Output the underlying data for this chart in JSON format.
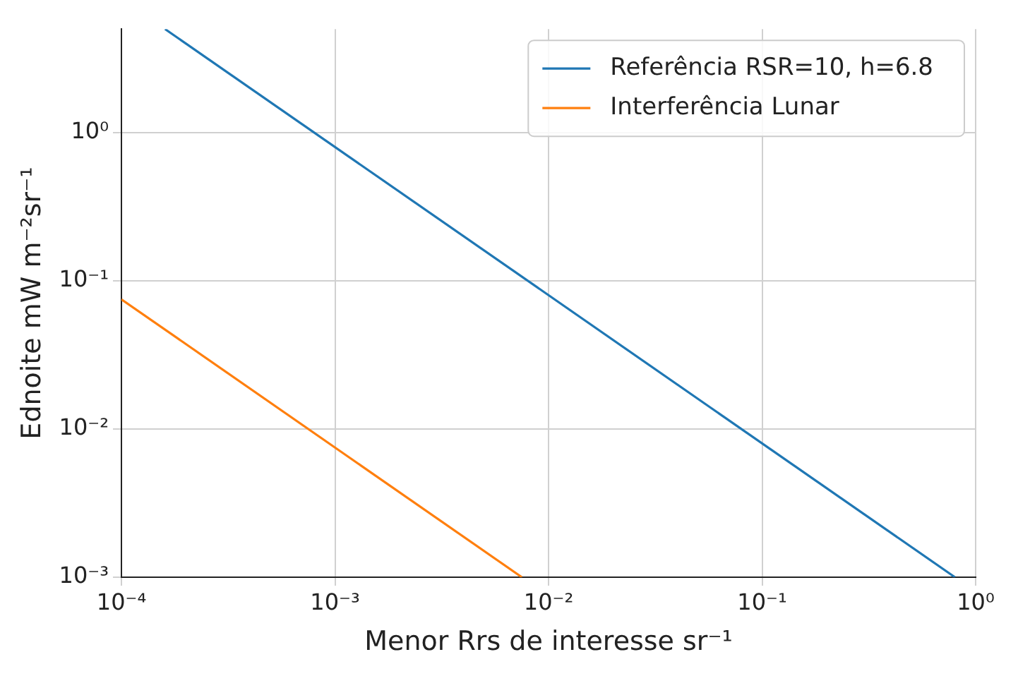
{
  "chart_data": {
    "type": "line",
    "xlabel": "Menor Rrs de interesse sr⁻¹",
    "ylabel": "Ednoite mW m⁻²sr⁻¹",
    "log": "xy",
    "grid": true,
    "legend": "top right",
    "xlim": [
      0.0001,
      1
    ],
    "ylim": [
      0.001,
      5
    ],
    "xticks": [
      {
        "value": 0.0001,
        "label": "10⁻⁴"
      },
      {
        "value": 0.001,
        "label": "10⁻³"
      },
      {
        "value": 0.01,
        "label": "10⁻²"
      },
      {
        "value": 0.1,
        "label": "10⁻¹"
      },
      {
        "value": 1,
        "label": "10⁰"
      }
    ],
    "yticks": [
      {
        "value": 0.001,
        "label": "10⁻³"
      },
      {
        "value": 0.01,
        "label": "10⁻²"
      },
      {
        "value": 0.1,
        "label": "10⁻¹"
      },
      {
        "value": 1,
        "label": "10⁰"
      }
    ],
    "series": [
      {
        "name": "Referência RSR=10, h=6.8",
        "color": "#1f77b4",
        "x": [
          0.00016,
          0.8
        ],
        "values": [
          5,
          0.001
        ]
      },
      {
        "name": "Interferência Lunar",
        "color": "#ff7f0e",
        "x": [
          0.0001,
          0.0075
        ],
        "values": [
          0.075,
          0.001
        ]
      }
    ]
  }
}
